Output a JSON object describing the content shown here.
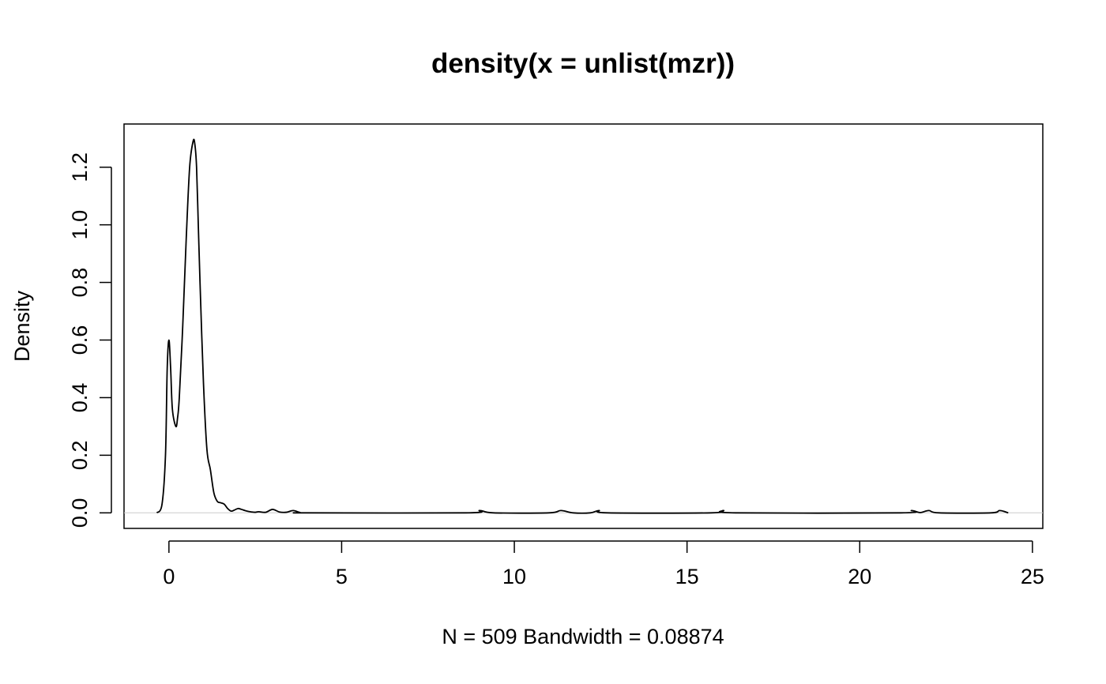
{
  "chart_data": {
    "type": "line",
    "title": "density(x = unlist(mzr))",
    "xlabel": "N = 509   Bandwidth = 0.08874",
    "ylabel": "Density",
    "xlim": [
      -1.3,
      25.3
    ],
    "ylim": [
      -0.054,
      1.35
    ],
    "x_ticks": [
      0,
      5,
      10,
      15,
      20,
      25
    ],
    "x_tick_labels": [
      "0",
      "5",
      "10",
      "15",
      "20",
      "25"
    ],
    "y_ticks": [
      0.0,
      0.2,
      0.4,
      0.6,
      0.8,
      1.0,
      1.2
    ],
    "y_tick_labels": [
      "0.0",
      "0.2",
      "0.4",
      "0.6",
      "0.8",
      "1.0",
      "1.2"
    ],
    "grid": false,
    "baseline": 0,
    "series": [
      {
        "x": [
          -0.35,
          -0.2,
          -0.1,
          -0.05,
          0.0,
          0.05,
          0.1,
          0.2,
          0.25,
          0.3,
          0.4,
          0.5,
          0.6,
          0.7,
          0.75,
          0.8,
          0.85,
          0.9,
          1.0,
          1.1,
          1.2,
          1.3,
          1.4,
          1.5,
          1.6,
          1.7,
          1.8,
          1.9,
          2.0,
          2.1,
          2.2,
          2.3,
          2.4,
          2.5,
          2.6,
          2.8,
          3.0,
          3.2,
          3.4,
          3.6,
          3.8,
          4.0,
          8.6,
          9.0,
          9.4,
          11.0,
          11.35,
          11.7,
          12.2,
          12.45,
          12.7,
          15.7,
          16.05,
          16.4,
          21.2,
          21.5,
          21.75,
          22.0,
          22.3,
          23.8,
          24.05,
          24.3
        ],
        "y": [
          0.0,
          0.03,
          0.2,
          0.5,
          0.6,
          0.5,
          0.36,
          0.3,
          0.33,
          0.4,
          0.65,
          0.95,
          1.2,
          1.29,
          1.28,
          1.2,
          1.0,
          0.8,
          0.45,
          0.22,
          0.15,
          0.07,
          0.04,
          0.035,
          0.03,
          0.015,
          0.006,
          0.01,
          0.015,
          0.012,
          0.008,
          0.005,
          0.003,
          0.002,
          0.004,
          0.002,
          0.012,
          0.003,
          0.002,
          0.008,
          0.001,
          0.0,
          0.0,
          0.008,
          0.0,
          0.0,
          0.008,
          0.0,
          0.0,
          0.008,
          0.0,
          0.0,
          0.008,
          0.0,
          0.0,
          0.008,
          0.001,
          0.008,
          0.0,
          0.0,
          0.008,
          0.0
        ]
      }
    ]
  }
}
